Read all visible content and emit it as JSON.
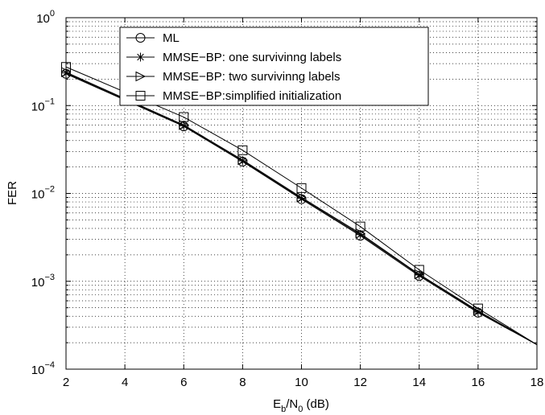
{
  "chart_data": {
    "type": "line",
    "xlabel": {
      "base": "E",
      "sub1": "b",
      "mid": "/N",
      "sub2": "0",
      "tail": " (dB)"
    },
    "ylabel": "FER",
    "xlim": [
      2,
      18
    ],
    "ylim": [
      0.0001,
      1
    ],
    "yscale": "log",
    "grid": true,
    "grid_style": "dotted",
    "legend_position": "top-right",
    "x_ticks": [
      "2",
      "4",
      "6",
      "8",
      "10",
      "12",
      "14",
      "16",
      "18"
    ],
    "y_ticks": [
      {
        "value": 1,
        "base": "10",
        "exp": "0"
      },
      {
        "value": 0.1,
        "base": "10",
        "exp": "−1"
      },
      {
        "value": 0.01,
        "base": "10",
        "exp": "−2"
      },
      {
        "value": 0.001,
        "base": "10",
        "exp": "−3"
      },
      {
        "value": 0.0001,
        "base": "10",
        "exp": "−4"
      }
    ],
    "series": [
      {
        "name": "ML",
        "marker": "circle",
        "x": [
          2,
          6,
          8,
          10,
          12,
          14,
          16,
          18
        ],
        "y": [
          0.23,
          0.058,
          0.023,
          0.0086,
          0.0033,
          0.00115,
          0.00044,
          0.00019
        ]
      },
      {
        "name": "MMSE−BP: one survivinng labels",
        "marker": "star",
        "x": [
          2,
          6,
          8,
          10,
          12,
          14,
          16,
          18
        ],
        "y": [
          0.235,
          0.059,
          0.0235,
          0.0088,
          0.0034,
          0.00118,
          0.00045,
          0.00019
        ]
      },
      {
        "name": "MMSE−BP: two survivinng labels",
        "marker": "triangle-right",
        "x": [
          2,
          6,
          8,
          10,
          12,
          14,
          16,
          18
        ],
        "y": [
          0.24,
          0.06,
          0.024,
          0.009,
          0.0035,
          0.0012,
          0.00046,
          0.00019
        ]
      },
      {
        "name": "MMSE−BP:simplified initialization",
        "marker": "square",
        "x": [
          2,
          6,
          8,
          10,
          12,
          14,
          16,
          18
        ],
        "y": [
          0.275,
          0.074,
          0.031,
          0.0115,
          0.0042,
          0.00135,
          0.00049,
          0.00019
        ]
      }
    ]
  }
}
